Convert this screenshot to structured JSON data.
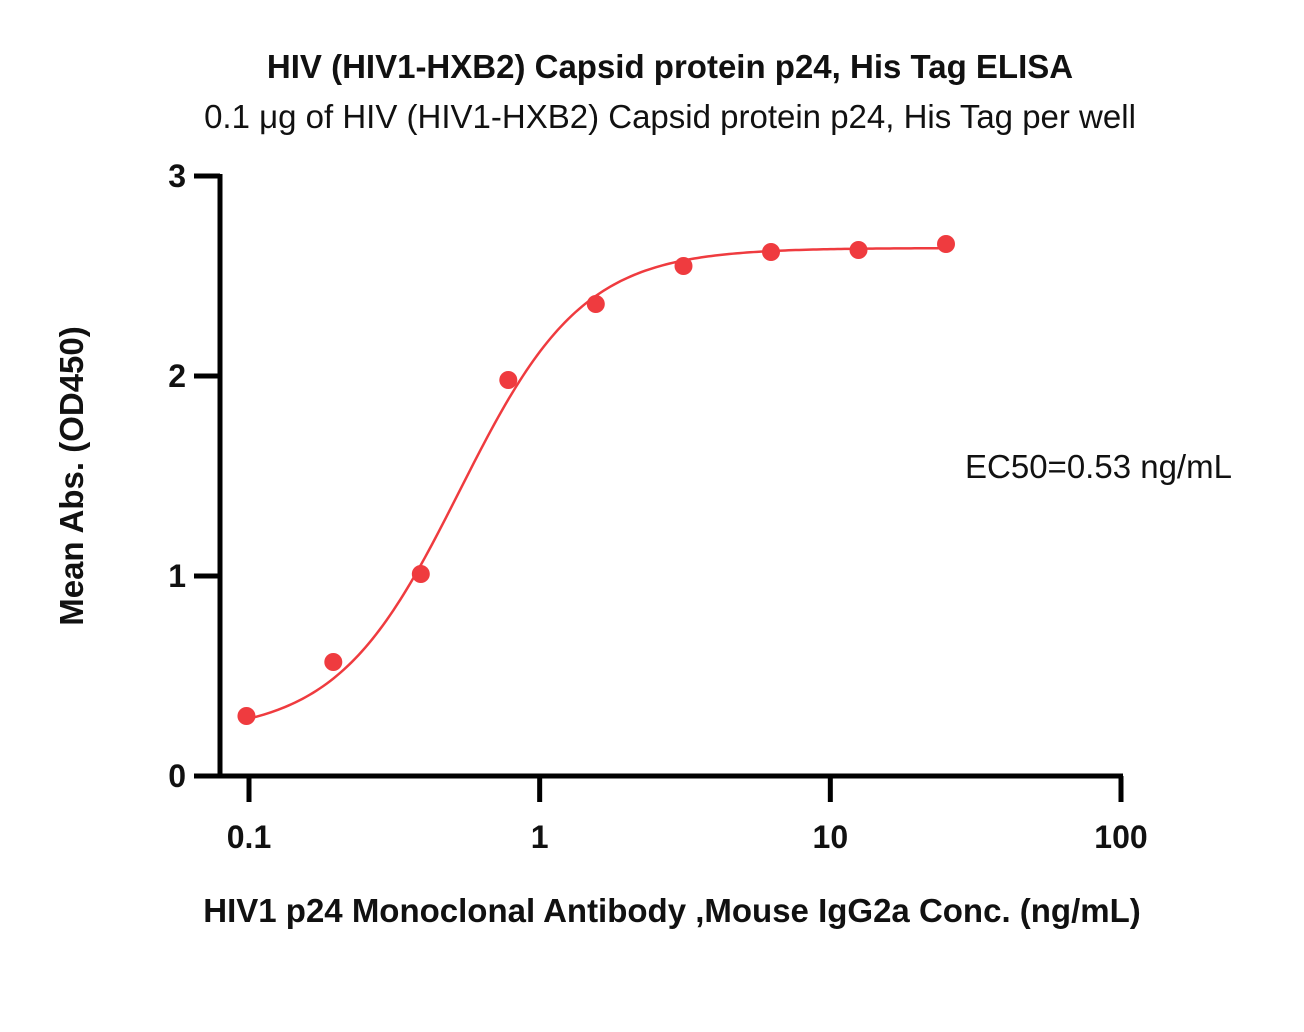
{
  "chart_data": {
    "type": "scatter",
    "title": "HIV (HIV1-HXB2) Capsid protein p24, His Tag ELISA",
    "subtitle": "0.1 μg of HIV (HIV1-HXB2) Capsid protein p24, His Tag per well",
    "xlabel": "HIV1 p24 Monoclonal Antibody ,Mouse IgG2a Conc. (ng/mL)",
    "ylabel": "Mean Abs. (OD450)",
    "x_scale": "log",
    "xlim": [
      0.1,
      100
    ],
    "ylim": [
      0,
      3
    ],
    "x_ticks": [
      "0.1",
      "1",
      "10",
      "100"
    ],
    "y_ticks": [
      "0",
      "1",
      "2",
      "3"
    ],
    "grid": false,
    "color": "#ef3b3f",
    "series": [
      {
        "x": [
          0.098,
          0.195,
          0.39,
          0.78,
          1.56,
          3.125,
          6.25,
          12.5,
          25
        ],
        "y": [
          0.3,
          0.57,
          1.01,
          1.98,
          2.36,
          2.55,
          2.62,
          2.63,
          2.66
        ]
      }
    ],
    "fit_curve": {
      "model": "4PL",
      "bottom": 0.21,
      "top": 2.64,
      "ec50": 0.53,
      "hill": 2.05
    },
    "annotation": "EC50=0.53 ng/mL"
  }
}
